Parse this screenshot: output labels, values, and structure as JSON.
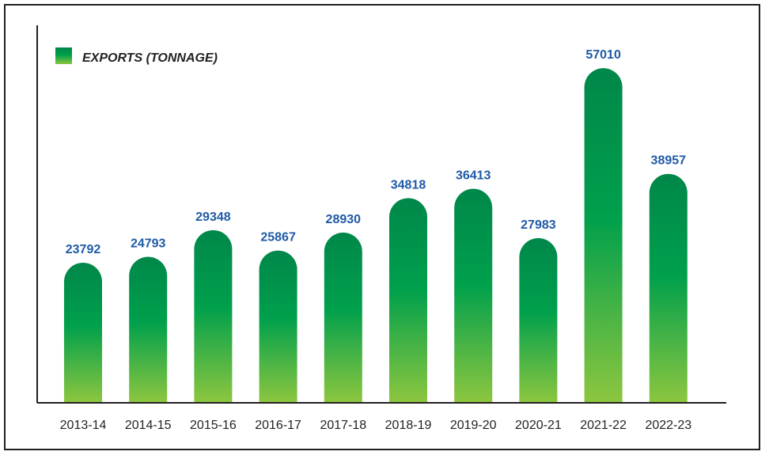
{
  "chart_data": {
    "type": "bar",
    "categories": [
      "2013-14",
      "2014-15",
      "2015-16",
      "2016-17",
      "2017-18",
      "2018-19",
      "2019-20",
      "2020-21",
      "2021-22",
      "2022-23"
    ],
    "series": [
      {
        "name": "EXPORTS (TONNAGE)",
        "values": [
          23792,
          24793,
          29348,
          25867,
          28930,
          34818,
          36413,
          27983,
          57010,
          38957
        ]
      }
    ],
    "value_labels": [
      "23792",
      "24793",
      "29348",
      "25867",
      "28930",
      "34818",
      "36413",
      "27983",
      "57010",
      "38957"
    ],
    "legend": {
      "label": "EXPORTS (TONNAGE)",
      "placement": "top-left"
    },
    "colors": {
      "bar_top": "#00874a",
      "bar_mid": "#00a04c",
      "bar_bottom": "#8cc63f",
      "value_label": "#1f5aa6",
      "axis": "#231f20"
    },
    "grid": false
  }
}
